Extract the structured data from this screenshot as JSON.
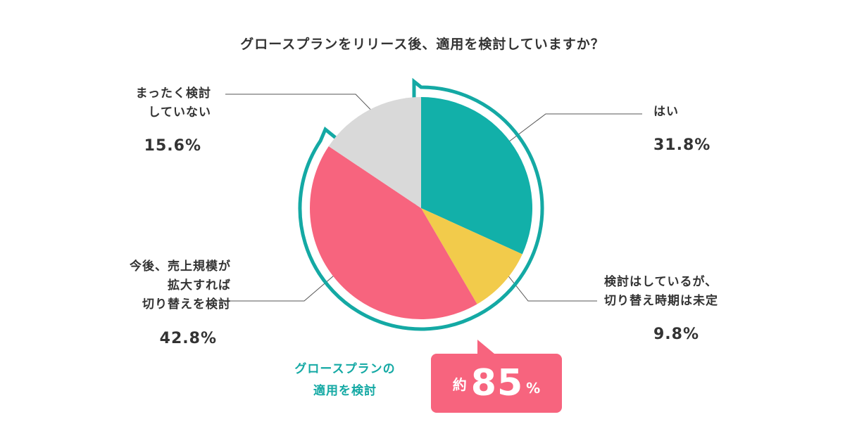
{
  "chart_data": {
    "type": "pie",
    "title": "グロースプランをリリース後、適用を検討していますか？",
    "slices": [
      {
        "label_lines": [
          "はい"
        ],
        "percent_text": "31.8%",
        "value": 31.8,
        "color": "#12b0a9"
      },
      {
        "label_lines": [
          "検討はしているが、",
          "切り替え時期は未定"
        ],
        "percent_text": "9.8%",
        "value": 9.8,
        "color": "#f2cb4b"
      },
      {
        "label_lines": [
          "今後、売上規模が",
          "拡大すれば",
          "切り替えを検討"
        ],
        "percent_text": "42.8%",
        "value": 42.8,
        "color": "#f7647e"
      },
      {
        "label_lines": [
          "まったく検討",
          "していない"
        ],
        "percent_text": "15.6%",
        "value": 15.6,
        "color": "#d9d9d9"
      }
    ],
    "highlight": {
      "color": "#14a9a4"
    }
  },
  "callout": {
    "lines": [
      "グロースプランの",
      "適用を検討"
    ],
    "prefix": "約",
    "number": "85",
    "unit": "%"
  }
}
